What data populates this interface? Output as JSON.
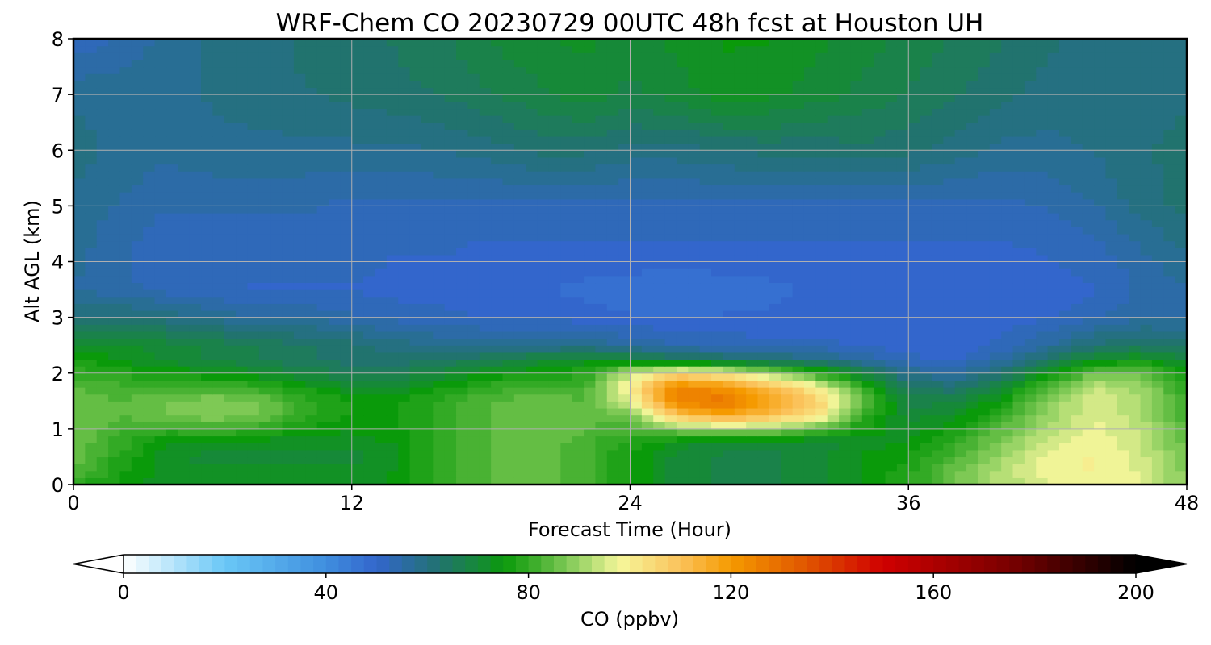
{
  "chart_data": {
    "type": "heatmap",
    "title": "WRF-Chem CO  20230729 00UTC 48h fcst at Houston UH",
    "xlabel": "Forecast Time (Hour)",
    "ylabel": "Alt AGL (km)",
    "xlim": [
      0,
      48
    ],
    "ylim": [
      0,
      8
    ],
    "x_ticks": [
      0,
      12,
      24,
      36,
      48
    ],
    "y_ticks": [
      0,
      1,
      2,
      3,
      4,
      5,
      6,
      7,
      8
    ],
    "grid": true,
    "colorbar": {
      "label": "CO  (ppbv)",
      "min": 0,
      "max": 200,
      "ticks": [
        0,
        40,
        80,
        120,
        160,
        200
      ],
      "extend": "both",
      "stops": [
        {
          "v": 0,
          "c": "#ffffff"
        },
        {
          "v": 20,
          "c": "#6ac8f6"
        },
        {
          "v": 40,
          "c": "#3f8ede"
        },
        {
          "v": 50,
          "c": "#3366cc"
        },
        {
          "v": 62,
          "c": "#227272"
        },
        {
          "v": 72,
          "c": "#138f2a"
        },
        {
          "v": 75,
          "c": "#0a9a0a"
        },
        {
          "v": 82,
          "c": "#44b030"
        },
        {
          "v": 90,
          "c": "#99d466"
        },
        {
          "v": 98,
          "c": "#f6f69a"
        },
        {
          "v": 110,
          "c": "#fbc25a"
        },
        {
          "v": 120,
          "c": "#f59a00"
        },
        {
          "v": 135,
          "c": "#e05500"
        },
        {
          "v": 150,
          "c": "#d00000"
        },
        {
          "v": 175,
          "c": "#7a0000"
        },
        {
          "v": 200,
          "c": "#000000"
        }
      ]
    },
    "x": [
      0,
      2,
      4,
      6,
      8,
      10,
      12,
      14,
      16,
      18,
      20,
      22,
      24,
      26,
      28,
      30,
      32,
      34,
      36,
      38,
      40,
      42,
      44,
      46,
      48
    ],
    "y": [
      0,
      0.25,
      0.5,
      0.75,
      1,
      1.25,
      1.5,
      1.75,
      2,
      2.25,
      2.5,
      3,
      3.5,
      4,
      5,
      6,
      7,
      8
    ],
    "z": [
      [
        78,
        76,
        72,
        72,
        72,
        72,
        72,
        74,
        80,
        84,
        86,
        82,
        76,
        70,
        68,
        68,
        70,
        74,
        78,
        86,
        92,
        96,
        98,
        96,
        88
      ],
      [
        84,
        77,
        72,
        72,
        72,
        72,
        72,
        74,
        80,
        84,
        86,
        82,
        76,
        70,
        68,
        68,
        70,
        74,
        78,
        86,
        92,
        98,
        99,
        96,
        88
      ],
      [
        86,
        78,
        72,
        70,
        70,
        70,
        70,
        74,
        80,
        84,
        86,
        82,
        76,
        70,
        68,
        68,
        70,
        74,
        76,
        82,
        90,
        97,
        99,
        95,
        86
      ],
      [
        86,
        80,
        74,
        72,
        72,
        72,
        72,
        74,
        80,
        84,
        86,
        82,
        78,
        72,
        70,
        70,
        70,
        72,
        74,
        80,
        88,
        95,
        98,
        94,
        85
      ],
      [
        86,
        82,
        80,
        82,
        80,
        76,
        74,
        76,
        80,
        84,
        86,
        84,
        82,
        88,
        90,
        90,
        84,
        76,
        72,
        76,
        84,
        92,
        97,
        93,
        84
      ],
      [
        86,
        84,
        86,
        88,
        86,
        80,
        76,
        76,
        80,
        84,
        86,
        84,
        86,
        110,
        118,
        112,
        104,
        80,
        70,
        72,
        80,
        90,
        96,
        92,
        82
      ],
      [
        85,
        84,
        86,
        88,
        86,
        80,
        76,
        76,
        80,
        84,
        85,
        84,
        96,
        125,
        128,
        118,
        108,
        86,
        68,
        68,
        76,
        88,
        96,
        92,
        81
      ],
      [
        84,
        82,
        82,
        82,
        80,
        76,
        72,
        72,
        76,
        80,
        82,
        82,
        100,
        125,
        122,
        112,
        100,
        80,
        64,
        62,
        70,
        84,
        94,
        90,
        79
      ],
      [
        80,
        78,
        76,
        74,
        72,
        68,
        66,
        66,
        70,
        74,
        76,
        78,
        94,
        104,
        100,
        90,
        80,
        68,
        58,
        56,
        62,
        74,
        86,
        86,
        77
      ],
      [
        76,
        74,
        70,
        68,
        66,
        64,
        62,
        62,
        64,
        66,
        70,
        72,
        70,
        66,
        64,
        62,
        60,
        56,
        52,
        50,
        56,
        64,
        72,
        74,
        70
      ],
      [
        72,
        72,
        70,
        68,
        66,
        64,
        62,
        60,
        58,
        58,
        58,
        58,
        56,
        54,
        53,
        52,
        52,
        51,
        50,
        50,
        52,
        56,
        62,
        64,
        62
      ],
      [
        62,
        62,
        60,
        58,
        56,
        56,
        54,
        53,
        52,
        51,
        51,
        50,
        49,
        49,
        49,
        49,
        50,
        50,
        50,
        50,
        50,
        51,
        53,
        56,
        56
      ],
      [
        56,
        55,
        53,
        52,
        51,
        51,
        51,
        50,
        50,
        49,
        49,
        48,
        47,
        46,
        47,
        48,
        49,
        50,
        50,
        50,
        50,
        50,
        51,
        54,
        56
      ],
      [
        57,
        54,
        51,
        52,
        52,
        52,
        52,
        51,
        51,
        50,
        50,
        50,
        50,
        50,
        50,
        50,
        50,
        50,
        50,
        50,
        50,
        51,
        52,
        55,
        58
      ],
      [
        58,
        56,
        54,
        54,
        54,
        54,
        53,
        53,
        53,
        53,
        53,
        53,
        53,
        53,
        53,
        53,
        53,
        53,
        53,
        53,
        53,
        54,
        56,
        60,
        62
      ],
      [
        60,
        58,
        57,
        58,
        58,
        58,
        58,
        58,
        59,
        60,
        62,
        62,
        60,
        60,
        61,
        62,
        62,
        63,
        62,
        60,
        58,
        58,
        59,
        61,
        62
      ],
      [
        58,
        58,
        58,
        59,
        60,
        61,
        62,
        63,
        64,
        66,
        68,
        70,
        68,
        70,
        73,
        72,
        70,
        68,
        66,
        64,
        62,
        60,
        59,
        60,
        61
      ],
      [
        52,
        54,
        57,
        59,
        60,
        62,
        63,
        64,
        66,
        69,
        71,
        72,
        70,
        72,
        74,
        74,
        72,
        70,
        68,
        66,
        64,
        62,
        60,
        59,
        60
      ]
    ]
  }
}
